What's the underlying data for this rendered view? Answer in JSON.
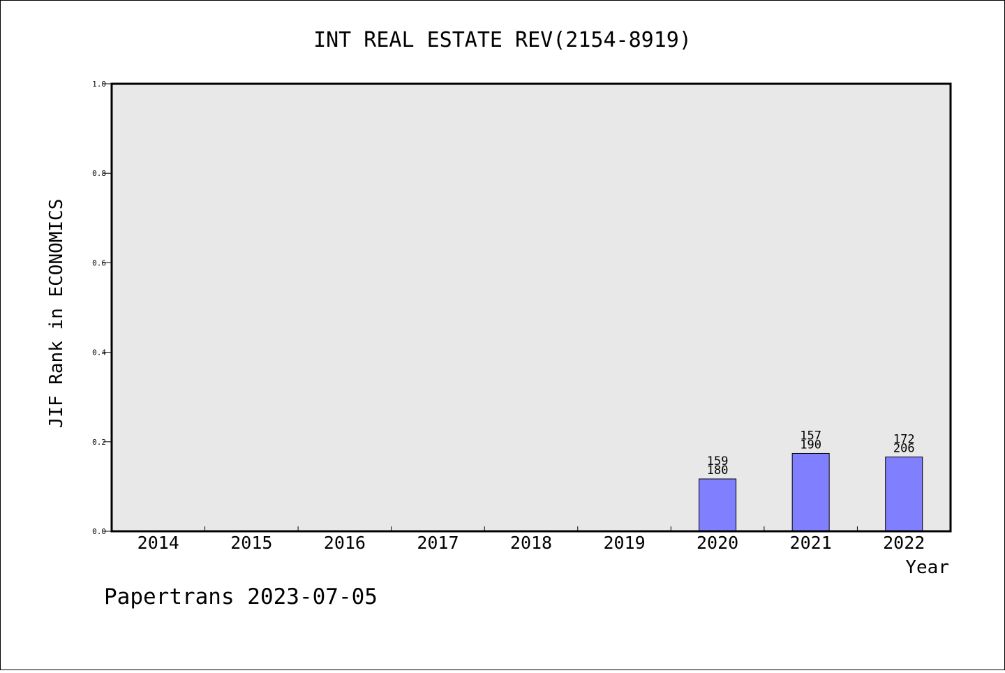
{
  "chart_data": {
    "type": "bar",
    "title": "INT REAL ESTATE REV(2154-8919)",
    "xlabel": "Year",
    "ylabel": "JIF Rank in ECONOMICS",
    "ylim": [
      0,
      1.0
    ],
    "yticks": [
      "0.0",
      "0.2",
      "0.4",
      "0.6",
      "0.8",
      "1.0"
    ],
    "categories": [
      "2014",
      "2015",
      "2016",
      "2017",
      "2018",
      "2019",
      "2020",
      "2021",
      "2022"
    ],
    "values": [
      null,
      null,
      null,
      null,
      null,
      null,
      0.117,
      0.174,
      0.166
    ],
    "rank_labels": [
      null,
      null,
      null,
      null,
      null,
      null,
      {
        "rank": "159",
        "total": "180"
      },
      {
        "rank": "157",
        "total": "190"
      },
      {
        "rank": "172",
        "total": "206"
      }
    ],
    "grid": false,
    "colors": {
      "bar": "#8080ff",
      "plot_bg": "#e8e8e8",
      "axis": "#000000"
    }
  },
  "footer": "Papertrans 2023-07-05"
}
